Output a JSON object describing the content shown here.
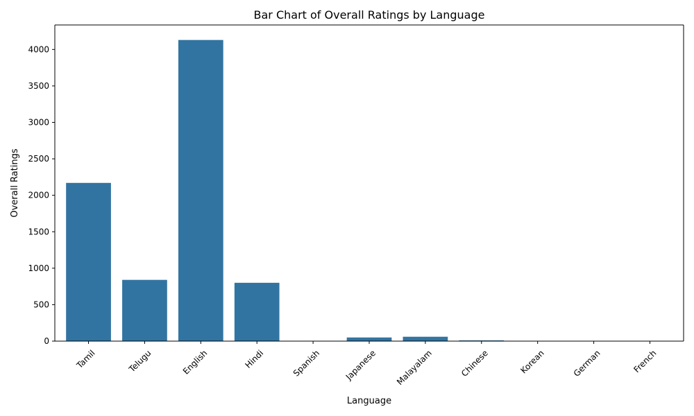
{
  "chart_data": {
    "type": "bar",
    "title": "Bar Chart of Overall Ratings by Language",
    "xlabel": "Language",
    "ylabel": "Overall Ratings",
    "categories": [
      "Tamil",
      "Telugu",
      "English",
      "Hindi",
      "Spanish",
      "Japanese",
      "Malayalam",
      "Chinese",
      "Korean",
      "German",
      "French"
    ],
    "values": [
      2170,
      840,
      4130,
      800,
      1,
      50,
      60,
      10,
      1,
      1,
      1
    ],
    "ylim": [
      0,
      4336
    ],
    "yticks": [
      0,
      500,
      1000,
      1500,
      2000,
      2500,
      3000,
      3500,
      4000
    ],
    "grid": false,
    "legend": "none",
    "bar_color": "#3274a1",
    "x_tick_rotation": 45
  }
}
